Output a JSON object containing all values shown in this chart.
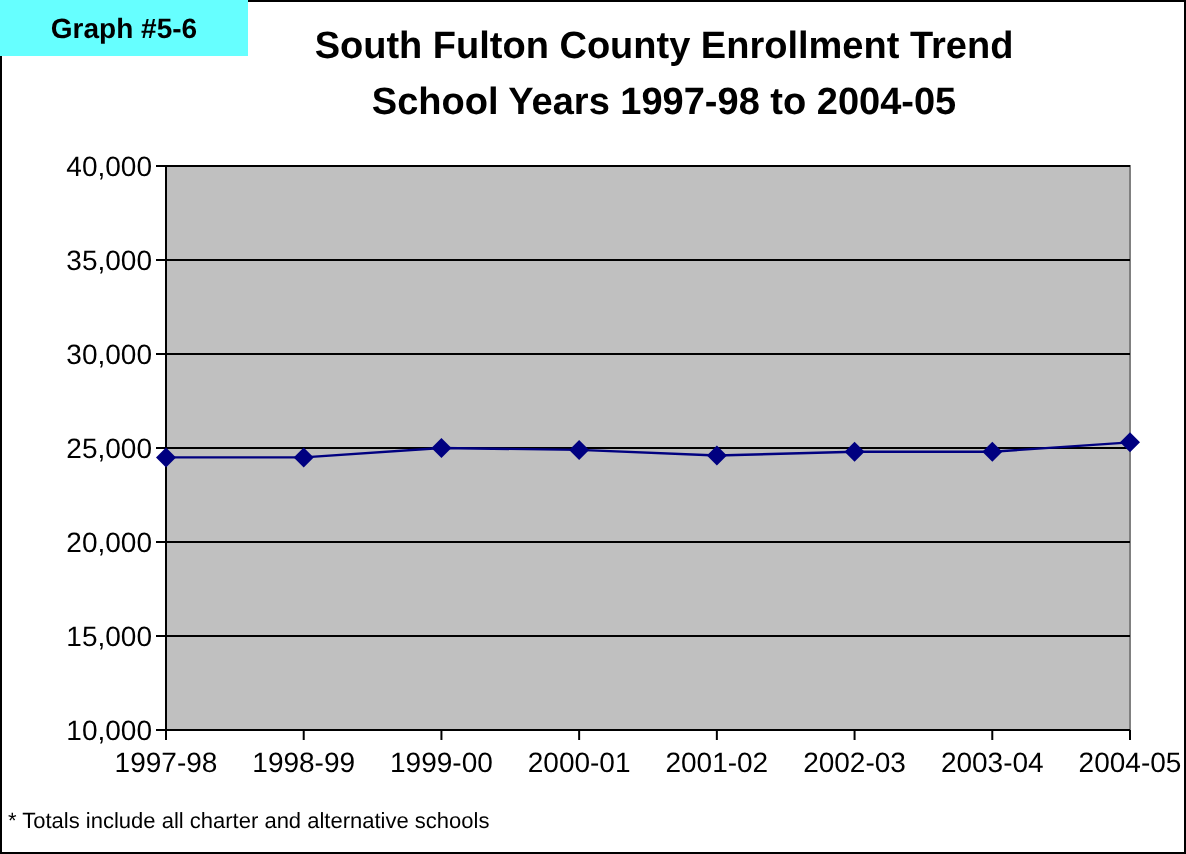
{
  "chart_data": {
    "type": "line",
    "title": "South Fulton County Enrollment Trend",
    "subtitle": "School Years 1997-98 to 2004-05",
    "categories": [
      "1997-98",
      "1998-99",
      "1999-00",
      "2000-01",
      "2001-02",
      "2002-03",
      "2003-04",
      "2004-05"
    ],
    "series": [
      {
        "color": "#000080",
        "values": [
          24500,
          24500,
          25000,
          24900,
          24600,
          24800,
          24800,
          25300
        ]
      }
    ],
    "ylim": [
      10000,
      40000
    ],
    "yticks": [
      {
        "value": 10000,
        "label": "10,000"
      },
      {
        "value": 15000,
        "label": "15,000"
      },
      {
        "value": 20000,
        "label": "20,000"
      },
      {
        "value": 25000,
        "label": "25,000"
      },
      {
        "value": 30000,
        "label": "30,000"
      },
      {
        "value": 35000,
        "label": "35,000"
      },
      {
        "value": 40000,
        "label": "40,000"
      }
    ],
    "grid": "y",
    "marker": "diamond",
    "line_style": "solid",
    "annotations": [
      "Graph #5-6",
      "* Totals include all charter and alternative schools"
    ]
  }
}
